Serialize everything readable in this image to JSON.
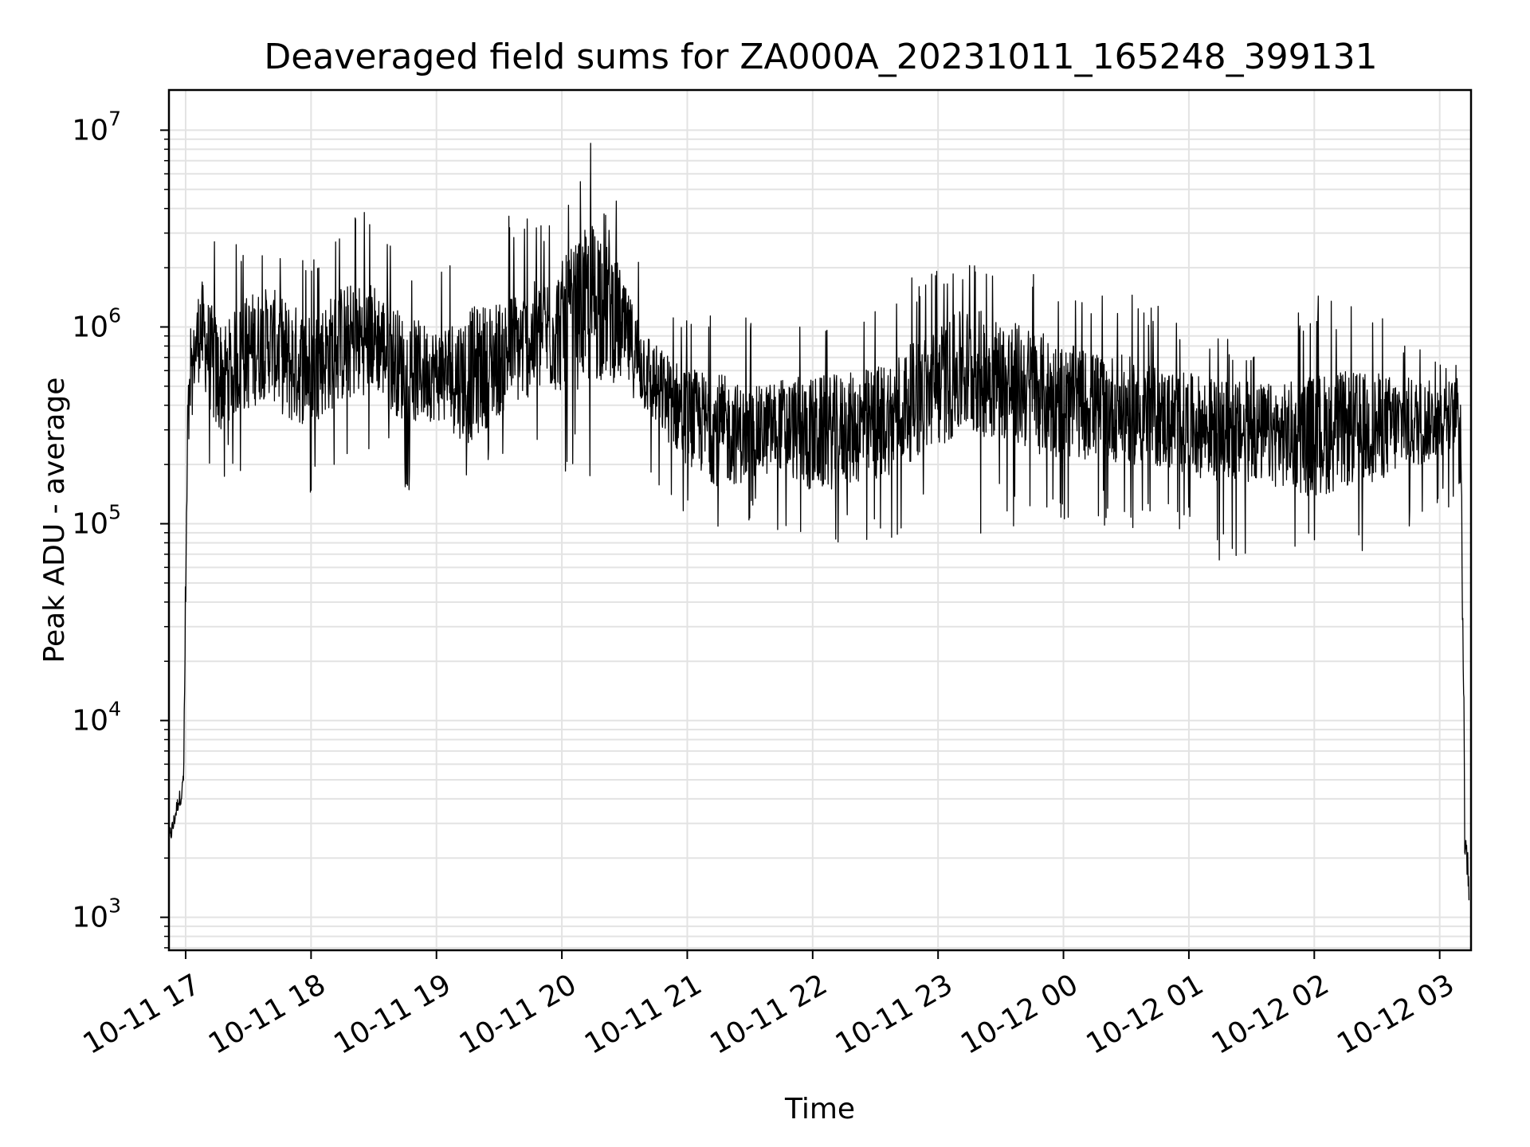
{
  "chart_data": {
    "type": "line",
    "title": "Deaveraged field sums for ZA000A_20231011_165248_399131",
    "xlabel": "Time",
    "ylabel": "Peak ADU - average",
    "yscale": "log",
    "ylim": [
      680,
      16000000
    ],
    "xlim": [
      "2023-10-11 16:52",
      "2023-10-12 03:15"
    ],
    "grid": true,
    "grid_color": "#e3e3e3",
    "line_color": "#000000",
    "y_ticks": [
      {
        "value": 1000,
        "base": "10",
        "exp": "3"
      },
      {
        "value": 10000,
        "base": "10",
        "exp": "4"
      },
      {
        "value": 100000,
        "base": "10",
        "exp": "5"
      },
      {
        "value": 1000000,
        "base": "10",
        "exp": "6"
      },
      {
        "value": 10000000,
        "base": "10",
        "exp": "7"
      }
    ],
    "x_ticks": [
      {
        "time": "2023-10-11 17:00",
        "label": "10-11 17"
      },
      {
        "time": "2023-10-11 18:00",
        "label": "10-11 18"
      },
      {
        "time": "2023-10-11 19:00",
        "label": "10-11 19"
      },
      {
        "time": "2023-10-11 20:00",
        "label": "10-11 20"
      },
      {
        "time": "2023-10-11 21:00",
        "label": "10-11 21"
      },
      {
        "time": "2023-10-11 22:00",
        "label": "10-11 22"
      },
      {
        "time": "2023-10-11 23:00",
        "label": "10-11 23"
      },
      {
        "time": "2023-10-12 00:00",
        "label": "10-12 00"
      },
      {
        "time": "2023-10-12 01:00",
        "label": "10-12 01"
      },
      {
        "time": "2023-10-12 02:00",
        "label": "10-12 02"
      },
      {
        "time": "2023-10-12 03:00",
        "label": "10-12 03"
      }
    ],
    "series": [
      {
        "x": [
          "2023-10-11 16:52",
          "2023-10-11 16:54",
          "2023-10-11 16:55",
          "2023-10-11 16:56",
          "2023-10-11 16:57",
          "2023-10-11 16:58",
          "2023-10-11 16:59",
          "2023-10-11 17:01",
          "2023-10-11 17:04",
          "2023-10-11 17:07",
          "2023-10-11 17:10",
          "2023-10-11 17:15",
          "2023-10-11 17:20",
          "2023-10-11 17:30",
          "2023-10-11 17:40",
          "2023-10-11 17:50",
          "2023-10-11 18:00",
          "2023-10-11 18:15",
          "2023-10-11 18:30",
          "2023-10-11 18:45",
          "2023-10-11 19:00",
          "2023-10-11 19:15",
          "2023-10-11 19:30",
          "2023-10-11 19:45",
          "2023-10-11 20:00",
          "2023-10-11 20:10",
          "2023-10-11 20:20",
          "2023-10-11 20:30",
          "2023-10-11 20:45",
          "2023-10-11 21:00",
          "2023-10-11 21:15",
          "2023-10-11 21:30",
          "2023-10-11 21:45",
          "2023-10-11 22:00",
          "2023-10-11 22:15",
          "2023-10-11 22:30",
          "2023-10-11 22:45",
          "2023-10-11 23:00",
          "2023-10-11 23:15",
          "2023-10-11 23:30",
          "2023-10-11 23:45",
          "2023-10-12 00:00",
          "2023-10-12 00:15",
          "2023-10-12 00:30",
          "2023-10-12 00:45",
          "2023-10-12 01:00",
          "2023-10-12 01:15",
          "2023-10-12 01:30",
          "2023-10-12 01:45",
          "2023-10-12 02:00",
          "2023-10-12 02:15",
          "2023-10-12 02:30",
          "2023-10-12 02:45",
          "2023-10-12 03:00",
          "2023-10-12 03:05",
          "2023-10-12 03:08",
          "2023-10-12 03:10",
          "2023-10-12 03:12",
          "2023-10-12 03:14"
        ],
        "y": [
          2500,
          2900,
          3300,
          3700,
          4000,
          4200,
          5000,
          300000,
          700000,
          1000000,
          800000,
          550000,
          600000,
          750000,
          850000,
          650000,
          620000,
          820000,
          900000,
          600000,
          580000,
          560000,
          700000,
          850000,
          1000000,
          1200000,
          1500000,
          900000,
          500000,
          350000,
          300000,
          280000,
          320000,
          280000,
          300000,
          320000,
          400000,
          500000,
          600000,
          550000,
          480000,
          420000,
          400000,
          380000,
          350000,
          320000,
          300000,
          290000,
          280000,
          280000,
          300000,
          310000,
          320000,
          340000,
          360000,
          380000,
          400000,
          3500,
          1500
        ],
        "envelope_max": [
          2900,
          3300,
          3700,
          4100,
          4400,
          4600,
          5500,
          900000,
          1500000,
          3000000,
          2200000,
          3500000,
          2500000,
          3200000,
          2600000,
          3000000,
          2400000,
          4400000,
          3900000,
          2300000,
          2100000,
          5200000,
          4800000,
          3600000,
          3800000,
          9800000,
          9000000,
          3200000,
          1400000,
          1200000,
          1500000,
          1100000,
          1000000,
          1200000,
          1300000,
          1400000,
          1800000,
          2200000,
          2300000,
          2100000,
          2300000,
          1900000,
          1600000,
          1500000,
          1300000,
          1100000,
          900000,
          800000,
          1000000,
          1500000,
          1300000,
          1200000,
          900000,
          750000,
          700000,
          650000,
          600000,
          12000,
          3300
        ],
        "envelope_min": [
          1700,
          2100,
          2400,
          2700,
          2900,
          3000,
          3200,
          100000,
          250000,
          200000,
          160000,
          140000,
          190000,
          150000,
          160000,
          120000,
          140000,
          200000,
          240000,
          140000,
          190000,
          160000,
          230000,
          200000,
          130000,
          180000,
          100000,
          250000,
          160000,
          100000,
          80000,
          100000,
          90000,
          57000,
          75000,
          70000,
          90000,
          100000,
          80000,
          95000,
          90000,
          100000,
          100000,
          95000,
          95000,
          80000,
          65000,
          60000,
          70000,
          60000,
          65000,
          75000,
          80000,
          110000,
          120000,
          130000,
          140000,
          1000,
          900
        ]
      }
    ]
  }
}
